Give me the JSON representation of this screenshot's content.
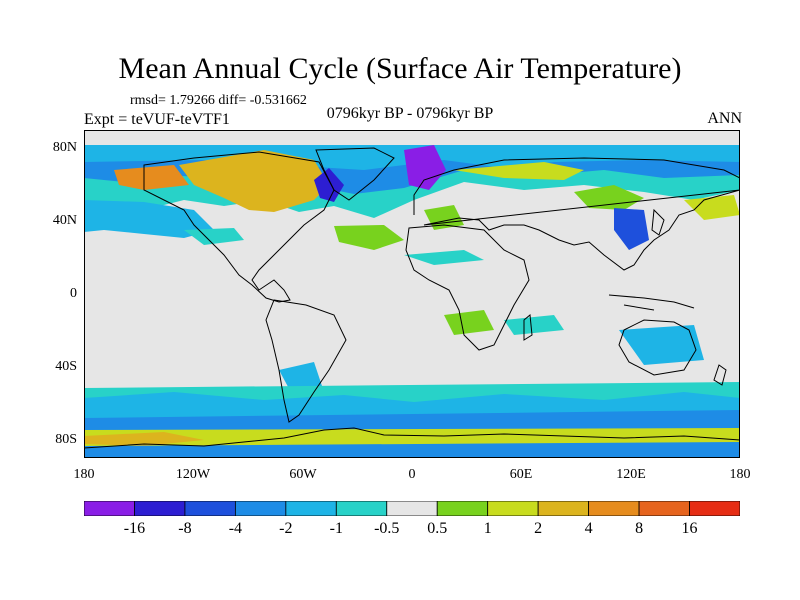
{
  "title": "Mean Annual Cycle (Surface Air Temperature)",
  "stats": "rmsd= 1.79266 diff= -0.531662",
  "experiment": "Expt = teVUF-teVTF1",
  "period": "0796kyr BP - 0796kyr BP",
  "season": "ANN",
  "lat_labels": [
    "80N",
    "40N",
    "0",
    "40S",
    "80S"
  ],
  "lon_labels": [
    "180",
    "120W",
    "60W",
    "0",
    "60E",
    "120E",
    "180"
  ],
  "colorbar": {
    "labels": [
      "-16",
      "-8",
      "-4",
      "-2",
      "-1",
      "-0.5",
      "0.5",
      "1",
      "2",
      "4",
      "8",
      "16"
    ],
    "colors": [
      "#8a1ee6",
      "#2d1ed2",
      "#1e50dc",
      "#1e8ce6",
      "#1eb4e6",
      "#28d2c8",
      "#e6e6e6",
      "#78d21e",
      "#c8dc1e",
      "#dcb41e",
      "#e68c1e",
      "#e6641e",
      "#e62d14"
    ]
  }
}
